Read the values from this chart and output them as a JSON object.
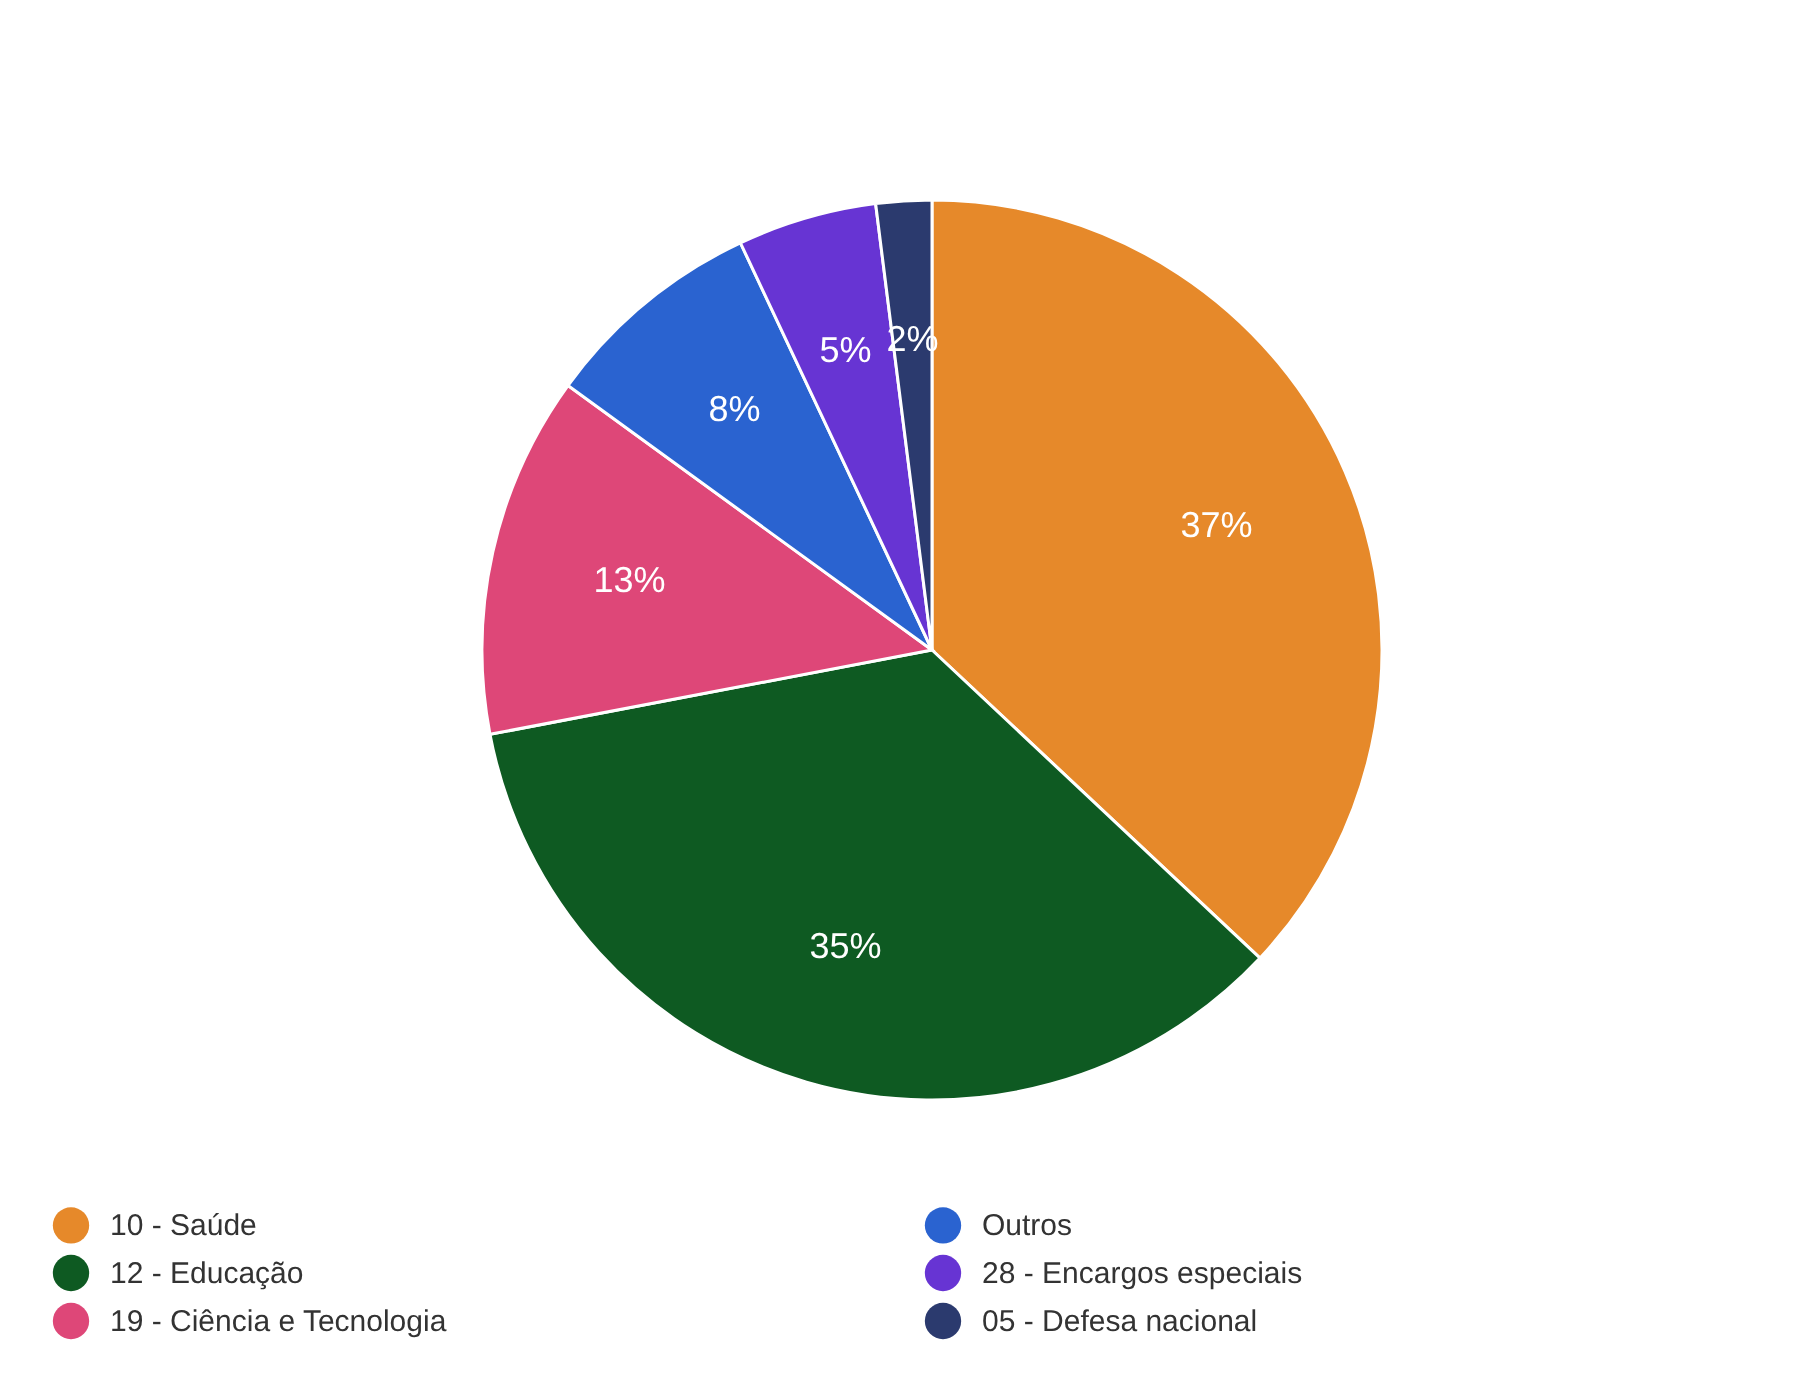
{
  "chart_data": {
    "type": "pie",
    "categories": [
      "10 - Saúde",
      "12 - Educação",
      "19 - Ciência e Tecnologia",
      "Outros",
      "28 - Encargos especiais",
      "05 - Defesa nacional"
    ],
    "values": [
      37,
      35,
      13,
      8,
      5,
      2
    ],
    "value_labels": [
      "37%",
      "35%",
      "13%",
      "8%",
      "5%",
      "2%"
    ],
    "colors": [
      "#e6892a",
      "#0e5a22",
      "#de4778",
      "#2a63d0",
      "#6734d3",
      "#2b3a6e"
    ],
    "legend": "bottom left"
  }
}
